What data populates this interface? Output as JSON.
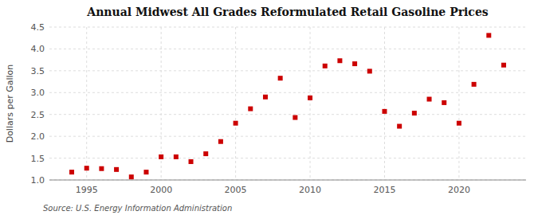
{
  "chart_data": {
    "type": "scatter",
    "title": "Annual Midwest All Grades Reformulated Retail Gasoline Prices",
    "ylabel": "Dollars per Gallon",
    "annotations": [
      "Source: U.S. Energy Information Administration"
    ],
    "x": [
      1994,
      1995,
      1996,
      1997,
      1998,
      1999,
      2000,
      2001,
      2002,
      2003,
      2004,
      2005,
      2006,
      2007,
      2008,
      2009,
      2010,
      2011,
      2012,
      2013,
      2014,
      2015,
      2016,
      2017,
      2018,
      2019,
      2020,
      2021,
      2022,
      2023
    ],
    "values": [
      1.18,
      1.27,
      1.26,
      1.24,
      1.07,
      1.18,
      1.53,
      1.53,
      1.42,
      1.6,
      1.88,
      2.3,
      2.63,
      2.9,
      3.33,
      2.43,
      2.88,
      3.61,
      3.73,
      3.66,
      3.49,
      2.57,
      2.23,
      2.53,
      2.85,
      2.77,
      2.3,
      3.19,
      4.31,
      3.63
    ],
    "color": "#cc0000",
    "marker": "square",
    "xlim": [
      1992.5,
      2024.5
    ],
    "xticks": [
      1995,
      2000,
      2005,
      2010,
      2015,
      2020
    ],
    "ylim": [
      1.0,
      4.5
    ],
    "yticks": [
      {
        "value": 1.0,
        "label": "1.0"
      },
      1.5,
      {
        "value": 2.0,
        "label": "2.0"
      },
      2.5,
      {
        "value": 3.0,
        "label": "3.0"
      },
      3.5,
      {
        "value": 4.0,
        "label": "4.0"
      },
      4.5
    ],
    "grid": true
  }
}
